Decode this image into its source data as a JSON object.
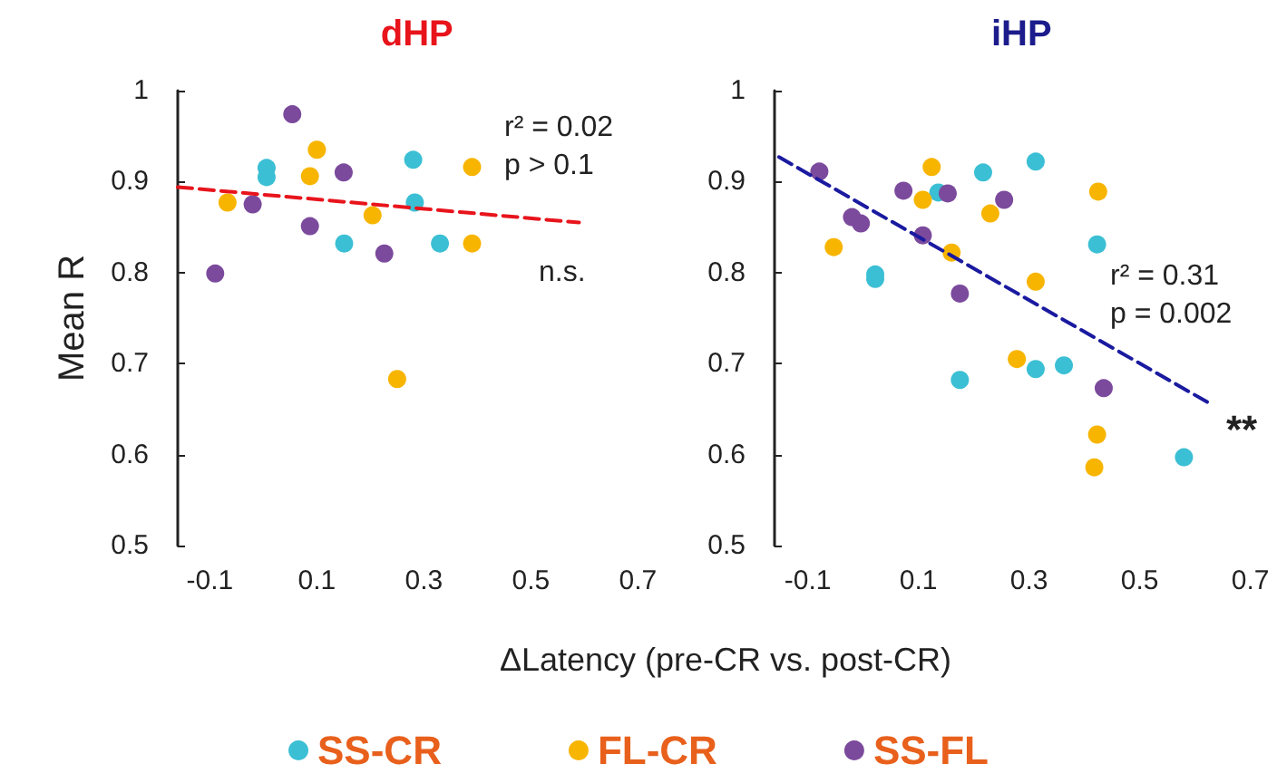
{
  "chart_data": [
    {
      "type": "scatter",
      "title": "dHP",
      "xlabel": "ΔLatency (pre-CR vs. post-CR)",
      "ylabel": "Mean R",
      "xlim": [
        -0.16,
        0.7
      ],
      "xticks": [
        -0.1,
        0.1,
        0.3,
        0.5,
        0.7
      ],
      "ylim": [
        0.5,
        1
      ],
      "yticks": [
        0.5,
        0.6,
        0.7,
        0.8,
        0.9,
        1
      ],
      "marker": "circle",
      "grid": false,
      "legend": "bottom",
      "annotations": [
        "r² = 0.02\np > 0.1",
        "n.s."
      ],
      "series": [
        {
          "name": "SS-CR",
          "color": "#3bbfd4",
          "x": [
            0.006,
            0.006,
            0.28,
            0.283,
            0.151,
            0.33
          ],
          "values": [
            0.915,
            0.905,
            0.924,
            0.877,
            0.832,
            0.832
          ]
        },
        {
          "name": "FL-CR",
          "color": "#f7b500",
          "x": [
            0.1,
            0.087,
            0.39,
            -0.067,
            0.204,
            0.39,
            0.25
          ],
          "values": [
            0.935,
            0.906,
            0.916,
            0.877,
            0.863,
            0.832,
            0.683
          ]
        },
        {
          "name": "SS-FL",
          "color": "#7b4a9c",
          "x": [
            0.054,
            0.15,
            -0.02,
            0.087,
            0.226,
            -0.09
          ],
          "values": [
            0.974,
            0.91,
            0.875,
            0.851,
            0.821,
            0.799
          ]
        },
        {
          "type": "line",
          "color": "#e8141c",
          "x": [
            -0.16,
            0.59
          ],
          "values": [
            0.894,
            0.855
          ],
          "line_style": "dashed",
          "marker": "none"
        }
      ]
    },
    {
      "type": "scatter",
      "title": "iHP",
      "xlim": [
        -0.16,
        0.7
      ],
      "xticks": [
        -0.1,
        0.1,
        0.3,
        0.5,
        0.7
      ],
      "ylim": [
        0.5,
        1
      ],
      "yticks": [
        0.5,
        0.6,
        0.7,
        0.8,
        0.9,
        1
      ],
      "marker": "circle",
      "grid": false,
      "annotations": [
        "r² = 0.31\np = 0.002",
        "**"
      ],
      "series": [
        {
          "color": "#3bbfd4",
          "x": [
            0.217,
            0.312,
            0.136,
            0.423,
            0.022,
            0.022,
            0.312,
            0.363,
            0.175,
            0.58
          ],
          "values": [
            0.91,
            0.922,
            0.888,
            0.831,
            0.798,
            0.793,
            0.694,
            0.698,
            0.682,
            0.597
          ]
        },
        {
          "color": "#f7b500",
          "x": [
            0.124,
            0.108,
            0.23,
            0.425,
            -0.053,
            0.16,
            0.312,
            0.278,
            0.423,
            0.418
          ],
          "values": [
            0.916,
            0.88,
            0.865,
            0.889,
            0.828,
            0.822,
            0.79,
            0.705,
            0.622,
            0.586
          ]
        },
        {
          "color": "#7b4a9c",
          "x": [
            -0.079,
            0.073,
            0.153,
            0.255,
            -0.02,
            -0.004,
            0.108,
            0.175,
            0.435
          ],
          "values": [
            0.911,
            0.89,
            0.887,
            0.88,
            0.861,
            0.854,
            0.841,
            0.777,
            0.673
          ]
        },
        {
          "type": "line",
          "color": "#1a1aa0",
          "x": [
            -0.152,
            0.63
          ],
          "values": [
            0.927,
            0.655
          ],
          "line_style": "dashed",
          "marker": "none"
        }
      ]
    }
  ]
}
